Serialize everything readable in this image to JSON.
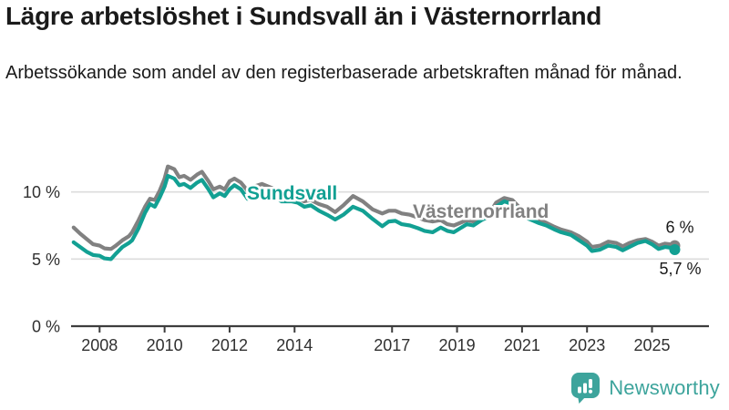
{
  "title": "Lägre arbetslöshet i Sundsvall än i Västernorrland",
  "subtitle": "Arbetssökande som andel av den registerbaserade arbetskraften månad för månad.",
  "branding": {
    "logo_text": "Newsworthy",
    "logo_color": "#3da49c"
  },
  "chart_data": {
    "type": "line",
    "title": "Lägre arbetslöshet i Sundsvall än i Västernorrland",
    "subtitle": "Arbetssökande som andel av den registerbaserade arbetskraften månad för månad.",
    "xlabel": "",
    "ylabel": "",
    "unit": "%",
    "ylim": [
      0,
      12.6
    ],
    "xlim": [
      2007.1,
      2026.8
    ],
    "grid": "horizontal",
    "legend_position": "inline-labels",
    "x_ticks": [
      {
        "value": 2008,
        "label": "2008"
      },
      {
        "value": 2010,
        "label": "2010"
      },
      {
        "value": 2012,
        "label": "2012"
      },
      {
        "value": 2014,
        "label": "2014"
      },
      {
        "value": 2017,
        "label": "2017"
      },
      {
        "value": 2019,
        "label": "2019"
      },
      {
        "value": 2021,
        "label": "2021"
      },
      {
        "value": 2023,
        "label": "2023"
      },
      {
        "value": 2025,
        "label": "2025"
      }
    ],
    "y_ticks": [
      {
        "value": 0,
        "label": "0 %"
      },
      {
        "value": 5,
        "label": "5 %"
      },
      {
        "value": 10,
        "label": "10 %"
      }
    ],
    "x": [
      2007.2,
      2007.4,
      2007.6,
      2007.8,
      2008.0,
      2008.15,
      2008.35,
      2008.5,
      2008.7,
      2008.9,
      2009.0,
      2009.2,
      2009.4,
      2009.55,
      2009.7,
      2009.85,
      2010.0,
      2010.1,
      2010.3,
      2010.45,
      2010.6,
      2010.8,
      2011.0,
      2011.15,
      2011.35,
      2011.5,
      2011.7,
      2011.85,
      2012.0,
      2012.15,
      2012.35,
      2012.55,
      2012.75,
      2013.0,
      2013.3,
      2013.6,
      2013.9,
      2014.1,
      2014.3,
      2014.5,
      2014.75,
      2015.0,
      2015.25,
      2015.5,
      2015.8,
      2016.1,
      2016.4,
      2016.7,
      2016.9,
      2017.1,
      2017.3,
      2017.55,
      2017.8,
      2018.0,
      2018.25,
      2018.5,
      2018.7,
      2018.9,
      2019.1,
      2019.3,
      2019.5,
      2019.75,
      2020.0,
      2020.2,
      2020.45,
      2020.7,
      2020.9,
      2021.1,
      2021.3,
      2021.5,
      2021.75,
      2022.0,
      2022.2,
      2022.5,
      2022.75,
      2023.0,
      2023.15,
      2023.4,
      2023.65,
      2023.9,
      2024.1,
      2024.3,
      2024.55,
      2024.8,
      2025.0,
      2025.2,
      2025.4,
      2025.55,
      2025.7
    ],
    "series": [
      {
        "name": "Västernorrland",
        "color": "#818181",
        "end_label": "6 %",
        "values": [
          7.35,
          6.9,
          6.5,
          6.1,
          6.0,
          5.8,
          5.75,
          6.0,
          6.4,
          6.7,
          7.0,
          7.9,
          8.9,
          9.5,
          9.4,
          10.1,
          11.0,
          11.9,
          11.7,
          11.1,
          11.2,
          10.9,
          11.3,
          11.5,
          10.8,
          10.2,
          10.4,
          10.2,
          10.8,
          11.0,
          10.7,
          10.1,
          10.4,
          10.6,
          10.3,
          9.9,
          9.8,
          9.5,
          9.3,
          9.4,
          9.1,
          8.9,
          8.5,
          9.0,
          9.7,
          9.3,
          8.7,
          8.4,
          8.6,
          8.6,
          8.4,
          8.3,
          8.1,
          7.9,
          7.8,
          7.9,
          7.6,
          7.5,
          7.7,
          7.9,
          7.8,
          8.1,
          8.4,
          9.2,
          9.55,
          9.4,
          8.9,
          8.3,
          8.1,
          7.95,
          7.7,
          7.4,
          7.2,
          7.0,
          6.7,
          6.3,
          5.9,
          6.0,
          6.3,
          6.2,
          5.95,
          6.2,
          6.4,
          6.5,
          6.3,
          6.0,
          6.15,
          6.1,
          6.0
        ]
      },
      {
        "name": "Sundsvall",
        "color": "#12a093",
        "end_label": "5,7 %",
        "values": [
          6.25,
          5.9,
          5.55,
          5.3,
          5.25,
          5.05,
          5.0,
          5.4,
          5.9,
          6.2,
          6.4,
          7.3,
          8.45,
          9.1,
          8.9,
          9.6,
          10.4,
          11.2,
          11.0,
          10.5,
          10.6,
          10.3,
          10.7,
          10.9,
          10.2,
          9.6,
          9.9,
          9.7,
          10.2,
          10.5,
          10.2,
          9.5,
          9.8,
          10.0,
          9.7,
          9.3,
          9.3,
          9.2,
          8.9,
          9.0,
          8.6,
          8.3,
          7.95,
          8.3,
          8.9,
          8.6,
          8.0,
          7.45,
          7.8,
          7.85,
          7.6,
          7.5,
          7.3,
          7.1,
          7.0,
          7.35,
          7.1,
          7.0,
          7.3,
          7.6,
          7.5,
          7.9,
          8.2,
          8.9,
          9.3,
          9.1,
          8.6,
          8.1,
          7.9,
          7.7,
          7.5,
          7.2,
          7.0,
          6.8,
          6.4,
          6.0,
          5.6,
          5.7,
          6.0,
          5.9,
          5.65,
          5.9,
          6.2,
          6.35,
          6.1,
          5.75,
          5.9,
          5.85,
          5.7
        ]
      }
    ]
  }
}
